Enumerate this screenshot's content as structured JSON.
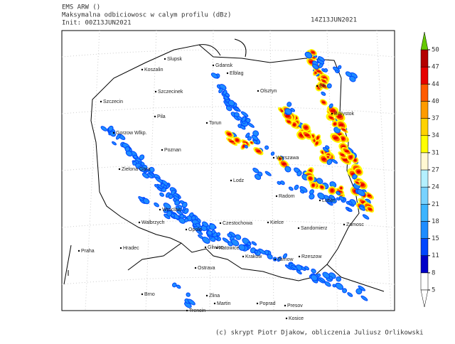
{
  "header": {
    "model": "EMS ARW ()",
    "product": "Maksymalna odbiciowosc w calym profilu (dBz)",
    "init": "Init: 00Z13JUN2021",
    "valid": "14Z13JUN2021"
  },
  "colorbar": {
    "levels": [
      5,
      8,
      11,
      15,
      18,
      21,
      24,
      27,
      31,
      34,
      37,
      40,
      44,
      47,
      50
    ],
    "colors": [
      "#ffffff",
      "#0000c8",
      "#0046ff",
      "#1e8cff",
      "#3cb4ff",
      "#78d2ff",
      "#b4f0ff",
      "#fff8d2",
      "#ffff00",
      "#ffd200",
      "#ff9b00",
      "#ff5a00",
      "#e60000",
      "#b40000"
    ],
    "over_color": "#64c800",
    "under_color": "#ffffff"
  },
  "cities": [
    "Slupsk",
    "Koszalin",
    "Gdansk",
    "Elblag",
    "Olsztyn",
    "Elk",
    "Szczecinek",
    "Szczecin",
    "Pila",
    "Torun",
    "Gorzow Wlkp.",
    "Bialystok",
    "Poznan",
    "Warszawa",
    "Zielona Gora",
    "Lodz",
    "Radom",
    "Lublin",
    "Wroclaw",
    "Walbrzych",
    "Opole",
    "Czestochowa",
    "Kielce",
    "Sandomierz",
    "Zamosc",
    "Praha",
    "Hradec",
    "Gliwice",
    "Katowice",
    "Krakow",
    "Tarnow",
    "Rzeszow",
    "Ostrava",
    "Brno",
    "Zlina",
    "Martin",
    "Poprad",
    "Presov",
    "Trencin",
    "Kosice"
  ],
  "footer": "(c) skrypt Piotr Djakow, obliczenia Juliusz Orlikowski"
}
